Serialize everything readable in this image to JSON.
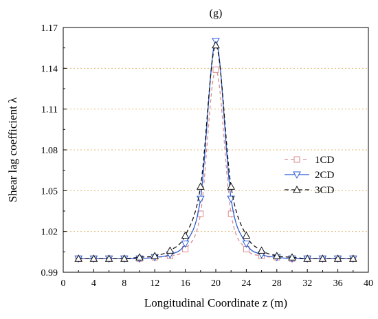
{
  "chart_data": {
    "type": "line",
    "title": "(g)",
    "xlabel": "Longitudinal Coordinate z (m)",
    "ylabel": "Shear lag coefficient λ",
    "xlim": [
      0,
      40
    ],
    "ylim": [
      0.99,
      1.17
    ],
    "xticks": [
      0,
      4,
      8,
      12,
      16,
      20,
      24,
      28,
      32,
      36,
      40
    ],
    "yticks": [
      0.99,
      1.02,
      1.05,
      1.08,
      1.11,
      1.14,
      1.17
    ],
    "ytick_labels": [
      "0.99",
      "1.02",
      "1.05",
      "1.08",
      "1.11",
      "1.14",
      "1.17"
    ],
    "grid": "horizontal dotted",
    "legend_position": "right",
    "marker_x": [
      2,
      4,
      6,
      8,
      10,
      12,
      14,
      16,
      18,
      20,
      22,
      24,
      26,
      28,
      30,
      32,
      34,
      36,
      38
    ],
    "series": [
      {
        "name": "1CD",
        "color": "#d98c8c",
        "dash": "5,4",
        "marker": "square",
        "values": [
          1.0,
          1.0,
          1.0,
          1.0,
          1.0,
          1.001,
          1.002,
          1.007,
          1.033,
          1.139,
          1.033,
          1.007,
          1.002,
          1.001,
          1.0,
          1.0,
          1.0,
          1.0,
          1.0
        ]
      },
      {
        "name": "2CD",
        "color": "#2a5ad6",
        "dash": "",
        "marker": "triangle-down",
        "values": [
          1.0,
          1.0,
          1.0,
          1.0,
          1.0,
          1.001,
          1.003,
          1.011,
          1.044,
          1.16,
          1.044,
          1.011,
          1.003,
          1.001,
          1.0,
          1.0,
          1.0,
          1.0,
          1.0
        ]
      },
      {
        "name": "3CD",
        "color": "#111111",
        "dash": "6,4",
        "marker": "triangle-up",
        "values": [
          1.0,
          1.0,
          1.0,
          1.0,
          1.001,
          1.002,
          1.006,
          1.017,
          1.053,
          1.157,
          1.053,
          1.017,
          1.006,
          1.002,
          1.001,
          1.0,
          1.0,
          1.0,
          1.0
        ]
      }
    ]
  }
}
